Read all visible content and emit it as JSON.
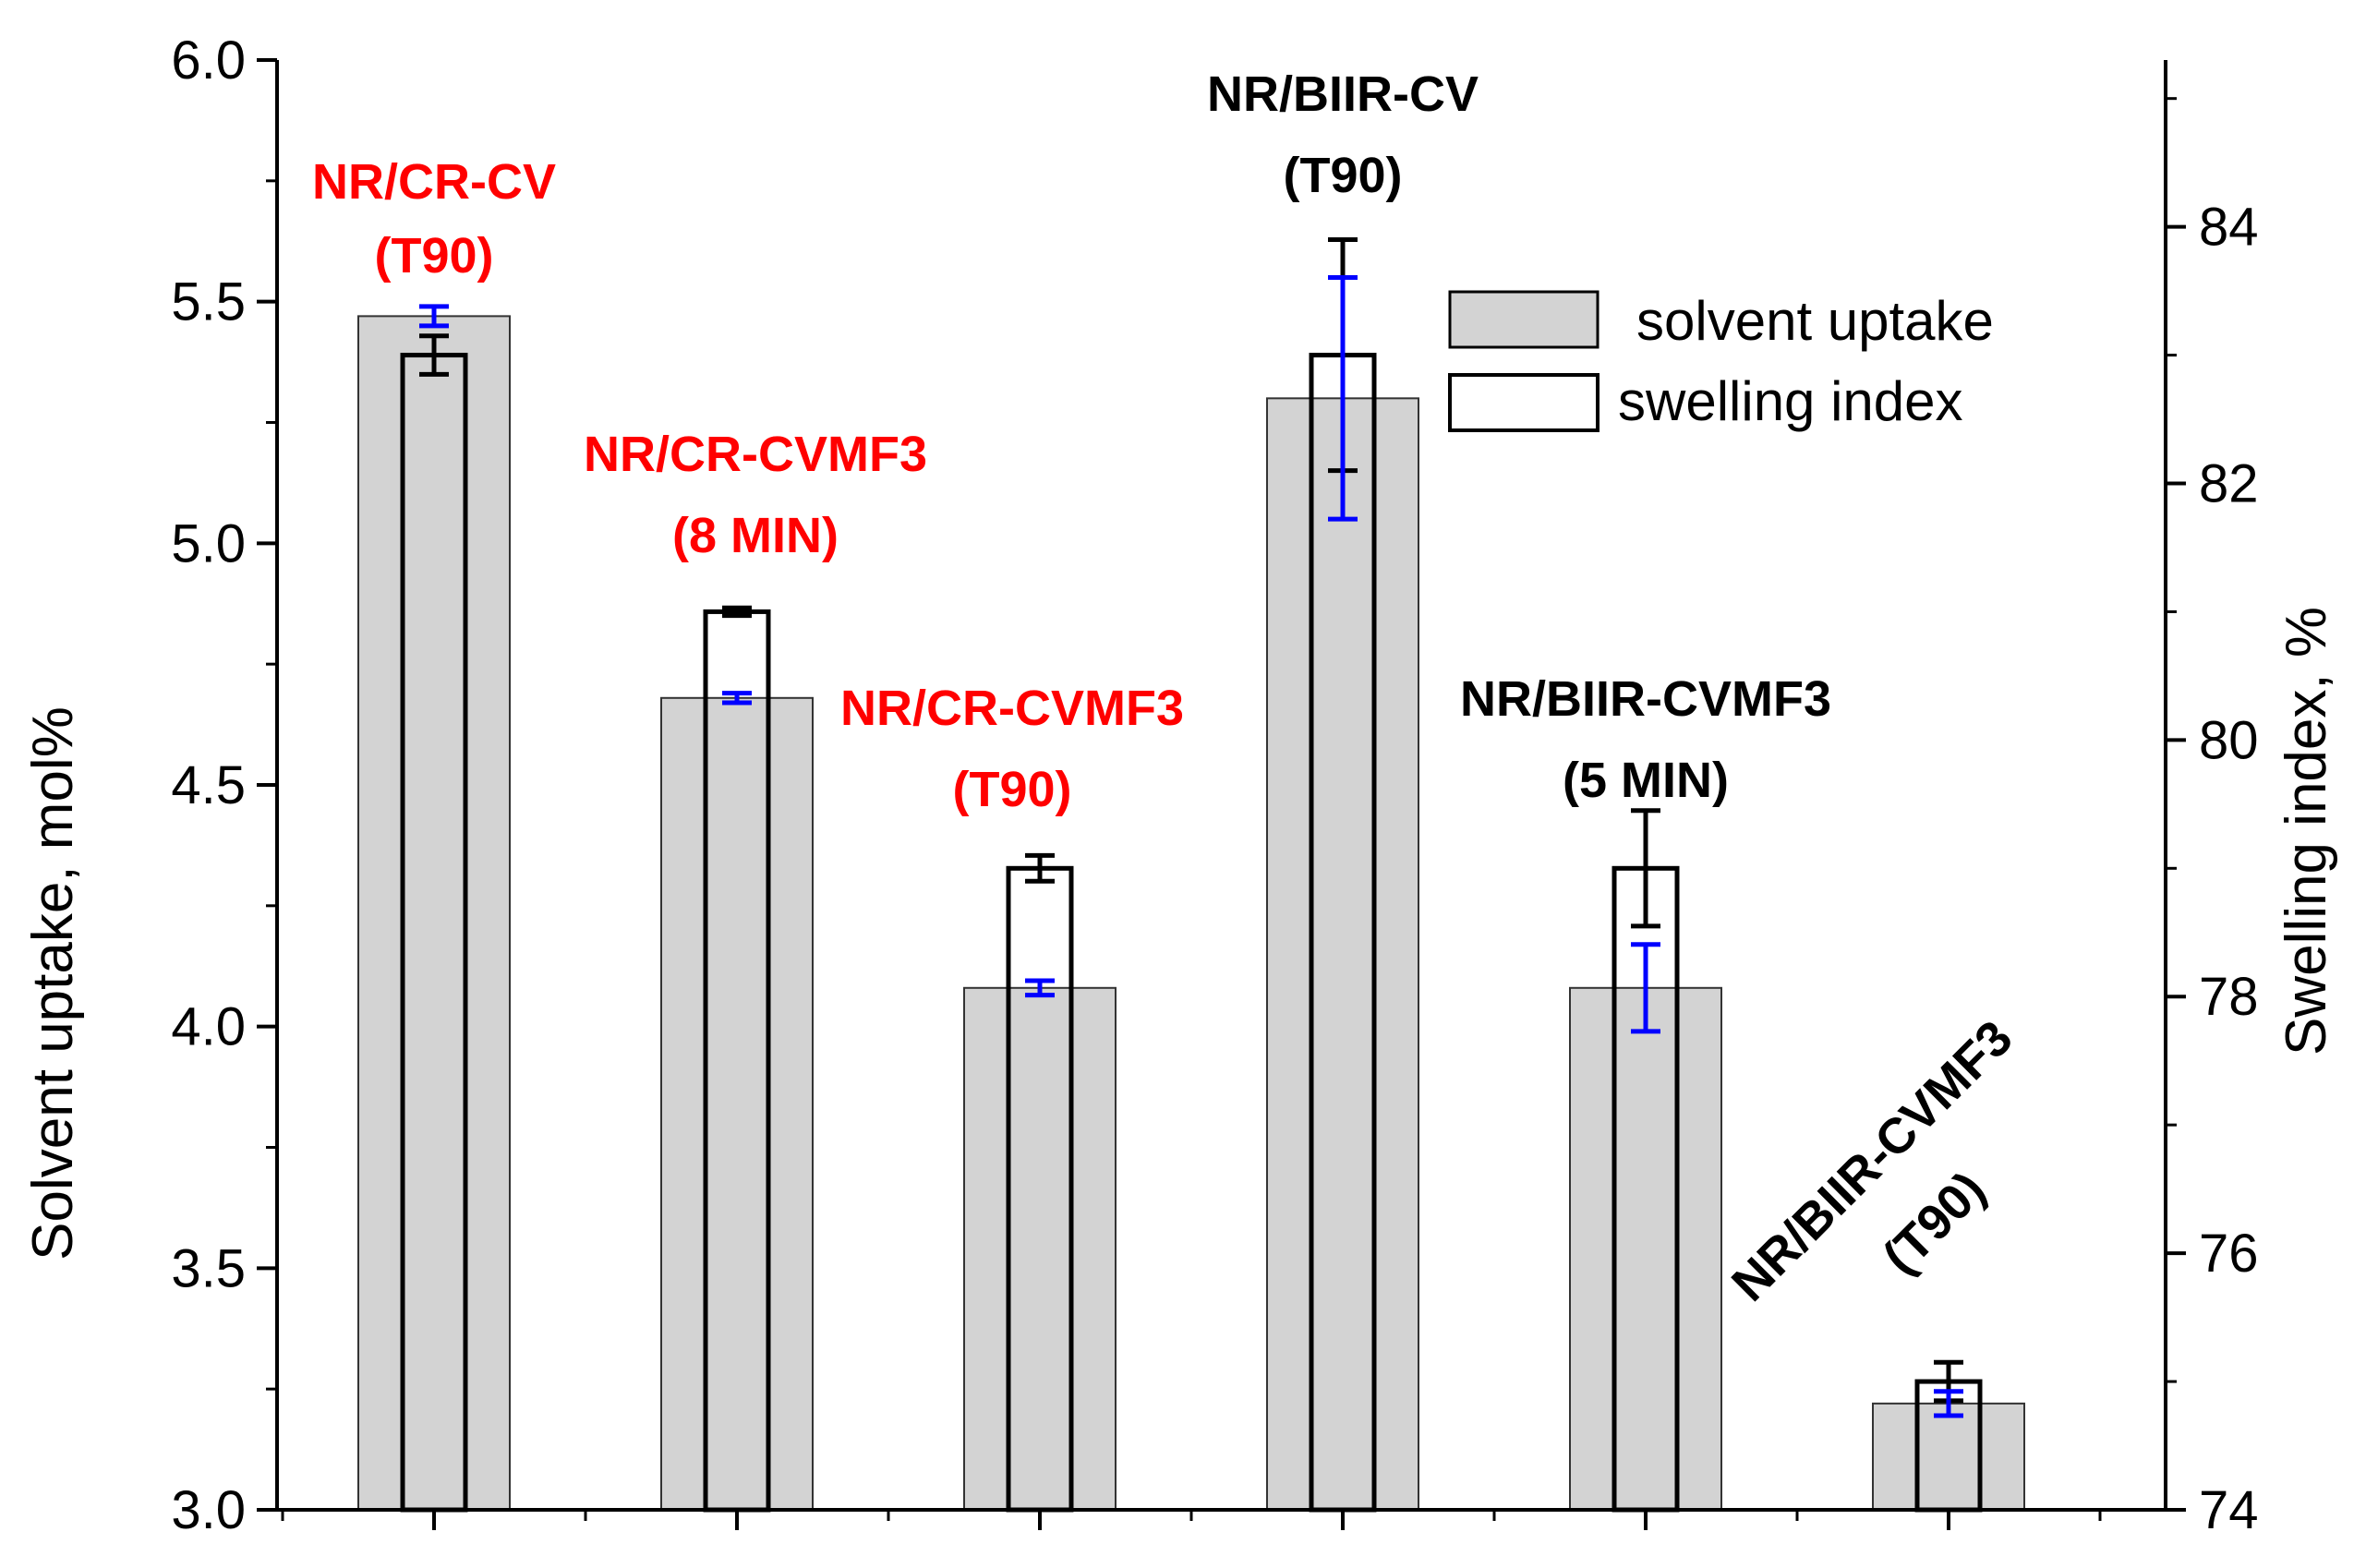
{
  "chart_data": {
    "type": "bar",
    "categories": [
      "",
      "",
      "",
      "",
      "",
      ""
    ],
    "series": [
      {
        "name": "solvent uptake",
        "axis": "left",
        "values": [
          5.47,
          4.68,
          4.08,
          5.3,
          4.08,
          3.22
        ],
        "errors": [
          0.02,
          0.01,
          0.015,
          0.25,
          0.09,
          0.025
        ],
        "fill": "#d3d3d3",
        "error_color": "#0000ff"
      },
      {
        "name": "swelling index",
        "axis": "right",
        "values": [
          83.0,
          81.0,
          79.0,
          83.0,
          79.0,
          75.0
        ],
        "errors": [
          0.15,
          0.03,
          0.1,
          0.9,
          0.45,
          0.15
        ],
        "fill": "#ffffff",
        "error_color": "#000000"
      }
    ],
    "annotations": [
      {
        "lines": [
          "NR/CR-CV",
          "(T90)"
        ],
        "color": "#ff0000",
        "rotate": 0,
        "category": 0
      },
      {
        "lines": [
          "NR/CR-CVMF3",
          "(8 MIN)"
        ],
        "color": "#ff0000",
        "rotate": 0,
        "category": 1
      },
      {
        "lines": [
          "NR/CR-CVMF3",
          "(T90)"
        ],
        "color": "#ff0000",
        "rotate": 0,
        "category": 2
      },
      {
        "lines": [
          "NR/BIIR-CV",
          "(T90)"
        ],
        "color": "#000000",
        "rotate": 0,
        "category": 3
      },
      {
        "lines": [
          "NR/BIIR-CVMF3",
          "(5 MIN)"
        ],
        "color": "#000000",
        "rotate": 0,
        "category": 4
      },
      {
        "lines": [
          "NR/BIIR-CVMF3",
          "(T90)"
        ],
        "color": "#000000",
        "rotate": -45,
        "category": 5
      }
    ],
    "y_left": {
      "label": "Solvent uptake, mol%",
      "ylim": [
        3.0,
        6.0
      ],
      "ticks": [
        "3.0",
        "3.5",
        "4.0",
        "4.5",
        "5.0",
        "5.5",
        "6.0"
      ]
    },
    "y_right": {
      "label": "Swelling index, %",
      "ylim": [
        74,
        85.3
      ],
      "ticks": [
        "74",
        "76",
        "78",
        "80",
        "82",
        "84"
      ]
    },
    "legend": {
      "position": "top-right"
    },
    "grid": false,
    "xlabel": ""
  }
}
